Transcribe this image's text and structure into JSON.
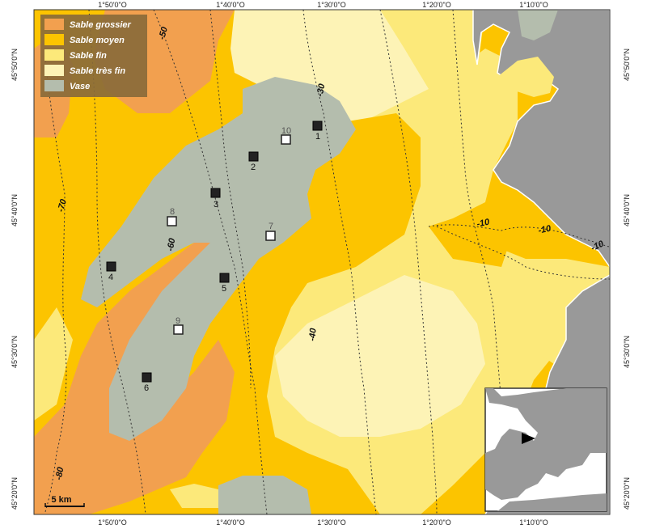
{
  "colors": {
    "sable_grossier": "#f2a04f",
    "sable_moyen": "#fcc400",
    "sable_fin": "#fce97a",
    "sable_tres_fin": "#fdf3b6",
    "vase": "#b4bdad",
    "land": "#999999",
    "legend_bg": "#8a6a3a"
  },
  "legend": [
    {
      "label": "Sable grossier",
      "color_key": "sable_grossier"
    },
    {
      "label": "Sable moyen",
      "color_key": "sable_moyen"
    },
    {
      "label": "Sable fin",
      "color_key": "sable_fin"
    },
    {
      "label": "Sable très fin",
      "color_key": "sable_tres_fin"
    },
    {
      "label": "Vase",
      "color_key": "vase"
    }
  ],
  "coords": {
    "top": [
      "1°50'0\"O",
      "1°40'0\"O",
      "1°30'0\"O",
      "1°20'0\"O",
      "1°10'0\"O"
    ],
    "bottom": [
      "1°50'0\"O",
      "1°40'0\"O",
      "1°30'0\"O",
      "1°20'0\"O",
      "1°10'0\"O"
    ],
    "left": [
      "45°50'0\"N",
      "45°40'0\"N",
      "45°30'0\"N",
      "45°20'0\"N"
    ],
    "right": [
      "45°50'0\"N",
      "45°40'0\"N",
      "45°30'0\"N",
      "45°20'0\"N"
    ]
  },
  "isobaths": [
    "-50",
    "-30",
    "-70",
    "-60",
    "-40",
    "-10",
    "-10",
    "-10",
    "-80"
  ],
  "stations": [
    {
      "label": "1",
      "style": "filled"
    },
    {
      "label": "2",
      "style": "filled"
    },
    {
      "label": "3",
      "style": "filled"
    },
    {
      "label": "4",
      "style": "filled"
    },
    {
      "label": "5",
      "style": "filled"
    },
    {
      "label": "6",
      "style": "filled"
    },
    {
      "label": "7",
      "style": "open"
    },
    {
      "label": "8",
      "style": "open"
    },
    {
      "label": "9",
      "style": "open"
    },
    {
      "label": "10",
      "style": "open"
    }
  ],
  "scale_bar": {
    "label": "5 km"
  },
  "inset": {
    "marker_icon": "arrow-pointer-icon"
  }
}
